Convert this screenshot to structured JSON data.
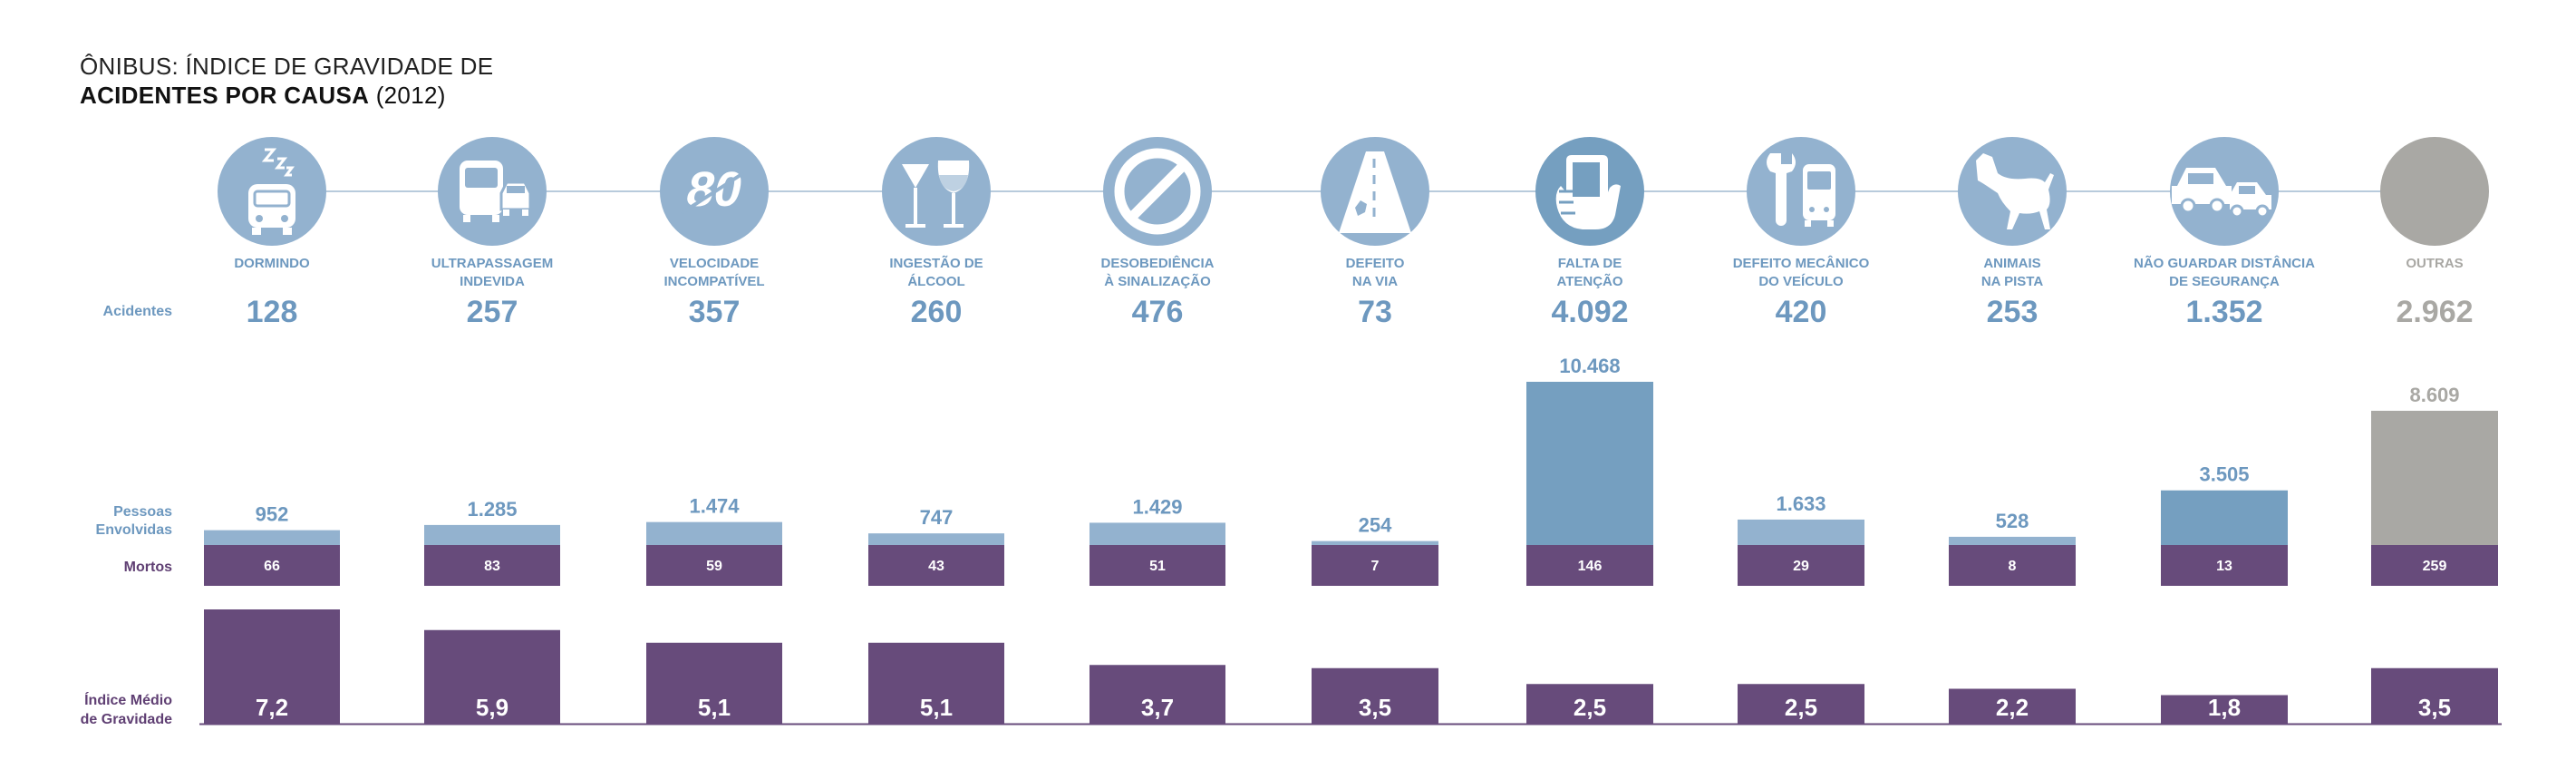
{
  "title": {
    "line1": "ÔNIBUS: ÍNDICE DE GRAVIDADE DE",
    "line2_bold": "ACIDENTES POR CAUSA",
    "line2_rest": " (2012)"
  },
  "row_labels": {
    "acidentes": "Acidentes",
    "pessoas_1": "Pessoas",
    "pessoas_2": "Envolvidas",
    "mortos": "Mortos",
    "indice_1": "Índice Médio",
    "indice_2": "de Gravidade"
  },
  "colors": {
    "light_blue": "#93b2cf",
    "mid_blue": "#759fc0",
    "purple": "#674b7b",
    "gray": "#a9a8a4",
    "text_blue": "#6d98bf",
    "text_gray": "#a9a8a4"
  },
  "chart_data": {
    "type": "bar",
    "title": "ÔNIBUS: ÍNDICE DE GRAVIDADE DE ACIDENTES POR CAUSA (2012)",
    "categories": [
      {
        "label_line1": "DORMINDO",
        "label_line2": "",
        "icon": "sleeping-bus-icon"
      },
      {
        "label_line1": "ULTRAPASSAGEM",
        "label_line2": "INDEVIDA",
        "icon": "bus-overtaking-car-icon"
      },
      {
        "label_line1": "VELOCIDADE",
        "label_line2": "INCOMPATÍVEL",
        "icon": "speed-80-icon"
      },
      {
        "label_line1": "INGESTÃO DE",
        "label_line2": "ÁLCOOL",
        "icon": "glasses-icon"
      },
      {
        "label_line1": "DESOBEDIÊNCIA",
        "label_line2": "À SINALIZAÇÃO",
        "icon": "prohibited-sign-icon"
      },
      {
        "label_line1": "DEFEITO",
        "label_line2": "NA VIA",
        "icon": "damaged-road-icon"
      },
      {
        "label_line1": "FALTA DE",
        "label_line2": "ATENÇÃO",
        "icon": "phone-in-hand-icon"
      },
      {
        "label_line1": "DEFEITO MECÂNICO",
        "label_line2": "DO VEÍCULO",
        "icon": "wrench-bus-icon"
      },
      {
        "label_line1": "ANIMAIS",
        "label_line2": "NA PISTA",
        "icon": "dog-icon"
      },
      {
        "label_line1": "NÃO GUARDAR DISTÂNCIA",
        "label_line2": "DE SEGURANÇA",
        "icon": "tailgating-cars-icon"
      },
      {
        "label_line1": "OUTRAS",
        "label_line2": "",
        "icon": "blank-circle-icon"
      }
    ],
    "series": [
      {
        "name": "Acidentes",
        "values": [
          128,
          257,
          357,
          260,
          476,
          73,
          4092,
          420,
          253,
          1352,
          2962
        ],
        "display": [
          "128",
          "257",
          "357",
          "260",
          "476",
          "73",
          "4.092",
          "420",
          "253",
          "1.352",
          "2.962"
        ]
      },
      {
        "name": "Pessoas Envolvidas",
        "values": [
          952,
          1285,
          1474,
          747,
          1429,
          254,
          10468,
          1633,
          528,
          3505,
          8609
        ],
        "display": [
          "952",
          "1.285",
          "1.474",
          "747",
          "1.429",
          "254",
          "10.468",
          "1.633",
          "528",
          "3.505",
          "8.609"
        ]
      },
      {
        "name": "Mortos",
        "values": [
          66,
          83,
          59,
          43,
          51,
          7,
          146,
          29,
          8,
          13,
          259
        ],
        "display": [
          "66",
          "83",
          "59",
          "43",
          "51",
          "7",
          "146",
          "29",
          "8",
          "13",
          "259"
        ]
      },
      {
        "name": "Índice Médio de Gravidade",
        "values": [
          7.2,
          5.9,
          5.1,
          5.1,
          3.7,
          3.5,
          2.5,
          2.5,
          2.2,
          1.8,
          3.5
        ],
        "display": [
          "7,2",
          "5,9",
          "5,1",
          "5,1",
          "3,7",
          "3,5",
          "2,5",
          "2,5",
          "2,2",
          "1,8",
          "3,5"
        ]
      }
    ],
    "gray_category": "OUTRAS",
    "highlighted_categories": [
      "FALTA DE ATENÇÃO",
      "NÃO GUARDAR DISTÂNCIA DE SEGURANÇA",
      "OUTRAS"
    ]
  }
}
